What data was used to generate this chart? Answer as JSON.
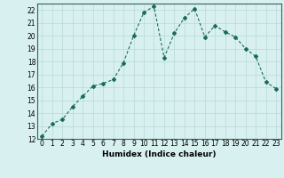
{
  "x": [
    0,
    1,
    2,
    3,
    4,
    5,
    6,
    7,
    8,
    9,
    10,
    11,
    12,
    13,
    14,
    15,
    16,
    17,
    18,
    19,
    20,
    21,
    22,
    23
  ],
  "y": [
    12.2,
    13.2,
    13.5,
    14.5,
    15.3,
    16.1,
    16.3,
    16.6,
    17.9,
    20.0,
    21.8,
    22.3,
    18.3,
    20.2,
    21.4,
    22.1,
    19.9,
    20.8,
    20.3,
    19.9,
    19.0,
    18.4,
    16.4,
    15.9
  ],
  "line_color": "#1a6b5a",
  "marker": "D",
  "marker_size": 2.0,
  "bg_color": "#d8f0f0",
  "grid_color": "#b8d8d8",
  "xlabel": "Humidex (Indice chaleur)",
  "ylim": [
    12,
    22.5
  ],
  "xlim": [
    -0.5,
    23.5
  ],
  "yticks": [
    12,
    13,
    14,
    15,
    16,
    17,
    18,
    19,
    20,
    21,
    22
  ],
  "xticks": [
    0,
    1,
    2,
    3,
    4,
    5,
    6,
    7,
    8,
    9,
    10,
    11,
    12,
    13,
    14,
    15,
    16,
    17,
    18,
    19,
    20,
    21,
    22,
    23
  ],
  "tick_fontsize": 5.5,
  "xlabel_fontsize": 6.5
}
